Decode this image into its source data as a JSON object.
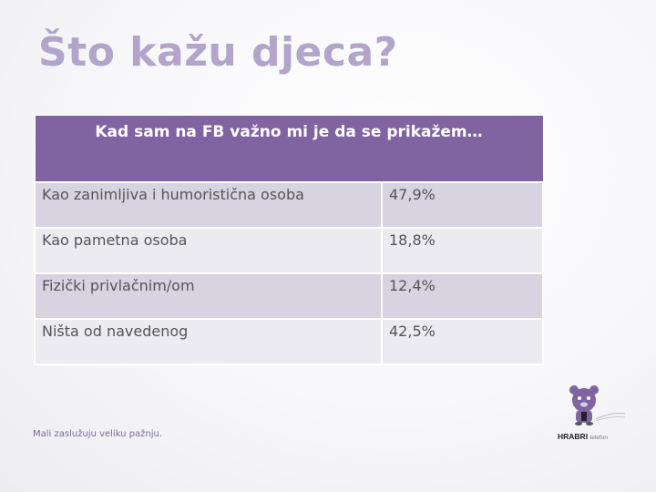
{
  "title": "Što kažu djeca?",
  "table": {
    "header": "Kad sam na FB važno mi je da se prikažem…",
    "rows": [
      {
        "label": "Kao zanimljiva i humoristična osoba",
        "value": "47,9%"
      },
      {
        "label": "Kao pametna osoba",
        "value": "18,8%"
      },
      {
        "label": "Fizički privlačnim/om",
        "value": "12,4%"
      },
      {
        "label": "Ništa od navedenog",
        "value": "42,5%"
      }
    ]
  },
  "footer": {
    "tagline": "Mali zaslužuju veliku pažnju."
  },
  "logo": {
    "name": "HRABRI",
    "sub": "telefon",
    "icon": "bear-icon",
    "colors": {
      "bear": "#8064a2",
      "accent": "#000000"
    }
  },
  "colors": {
    "header_bg": "#8064a2",
    "row_odd": "#d7d3e1",
    "row_even": "#ecebf2",
    "title": "#b3a4cc"
  }
}
